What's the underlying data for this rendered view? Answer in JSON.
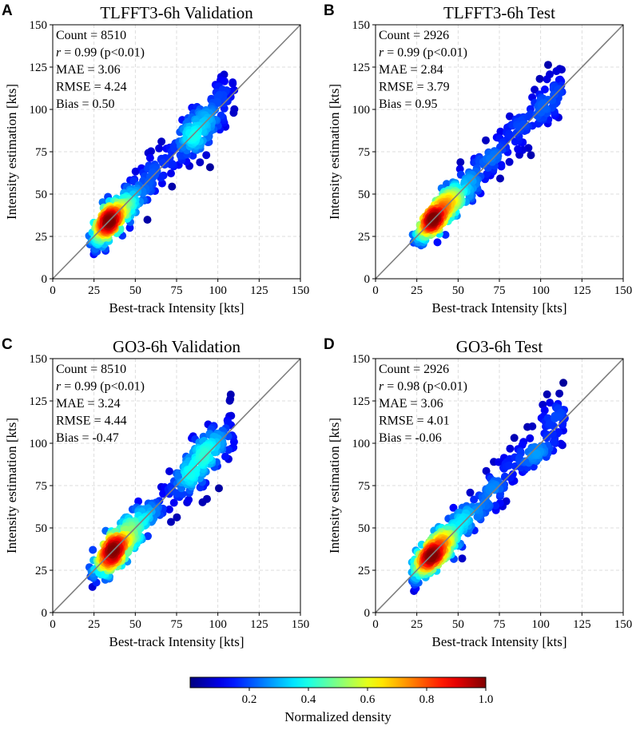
{
  "chart_data": [
    {
      "letter": "A",
      "type": "scatter",
      "title": "TLFFT3-6h Validation",
      "xlabel": "Best-track Intensity [kts]",
      "ylabel": "Intensity estimation [kts]",
      "xlim": [
        0,
        150
      ],
      "ylim": [
        0,
        150
      ],
      "ticks": [
        0,
        25,
        50,
        75,
        100,
        125,
        150
      ],
      "reference_line": "y = x",
      "stats": [
        {
          "label": "Count",
          "value": "8510"
        },
        {
          "label": "r",
          "value": "0.99 (p<0.01)",
          "italic": true
        },
        {
          "label": "MAE",
          "value": "3.06"
        },
        {
          "label": "RMSE",
          "value": "4.24"
        },
        {
          "label": "Bias",
          "value": "0.50"
        }
      ],
      "x_range": [
        22,
        110
      ],
      "spread": 4.8,
      "peak_at": 35,
      "second_peak_at": 90
    },
    {
      "letter": "B",
      "type": "scatter",
      "title": "TLFFT3-6h Test",
      "xlabel": "Best-track Intensity [kts]",
      "ylabel": "Intensity estimation [kts]",
      "xlim": [
        0,
        150
      ],
      "ylim": [
        0,
        150
      ],
      "ticks": [
        0,
        25,
        50,
        75,
        100,
        125,
        150
      ],
      "reference_line": "y = x",
      "stats": [
        {
          "label": "Count",
          "value": "2926"
        },
        {
          "label": "r",
          "value": "0.99 (p<0.01)",
          "italic": true
        },
        {
          "label": "MAE",
          "value": "2.84"
        },
        {
          "label": "RMSE",
          "value": "3.79"
        },
        {
          "label": "Bias",
          "value": "0.95"
        }
      ],
      "x_range": [
        22,
        115
      ],
      "spread": 4.2,
      "peak_at": 36,
      "second_peak_at": null
    },
    {
      "letter": "C",
      "type": "scatter",
      "title": "GO3-6h Validation",
      "xlabel": "Best-track Intensity [kts]",
      "ylabel": "Intensity estimation [kts]",
      "xlim": [
        0,
        150
      ],
      "ylim": [
        0,
        150
      ],
      "ticks": [
        0,
        25,
        50,
        75,
        100,
        125,
        150
      ],
      "reference_line": "y = x",
      "stats": [
        {
          "label": "Count",
          "value": "8510"
        },
        {
          "label": "r",
          "value": "0.99 (p<0.01)",
          "italic": true
        },
        {
          "label": "MAE",
          "value": "3.24"
        },
        {
          "label": "RMSE",
          "value": "4.44"
        },
        {
          "label": "Bias",
          "value": "-0.47"
        }
      ],
      "x_range": [
        22,
        110
      ],
      "spread": 5.0,
      "peak_at": 38,
      "second_peak_at": 86
    },
    {
      "letter": "D",
      "type": "scatter",
      "title": "GO3-6h Test",
      "xlabel": "Best-track Intensity [kts]",
      "ylabel": "Intensity estimation [kts]",
      "xlim": [
        0,
        150
      ],
      "ylim": [
        0,
        150
      ],
      "ticks": [
        0,
        25,
        50,
        75,
        100,
        125,
        150
      ],
      "reference_line": "y = x",
      "stats": [
        {
          "label": "Count",
          "value": "2926"
        },
        {
          "label": "r",
          "value": "0.98 (p<0.01)",
          "italic": true
        },
        {
          "label": "MAE",
          "value": "3.06"
        },
        {
          "label": "RMSE",
          "value": "4.01"
        },
        {
          "label": "Bias",
          "value": "-0.06"
        }
      ],
      "x_range": [
        22,
        115
      ],
      "spread": 4.6,
      "peak_at": 35,
      "second_peak_at": null
    }
  ],
  "colorbar": {
    "title": "Normalized density",
    "colormap": "jet",
    "range": [
      0,
      1.0
    ],
    "ticks": [
      "0.2",
      "0.4",
      "0.6",
      "0.8",
      "1.0"
    ],
    "tick_values": [
      0.2,
      0.4,
      0.6,
      0.8,
      1.0
    ]
  }
}
